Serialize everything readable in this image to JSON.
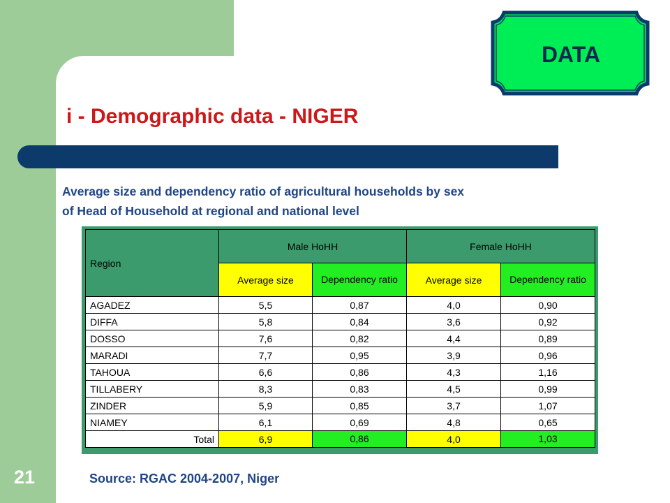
{
  "badge": "DATA",
  "title": "i - Demographic data - NIGER",
  "subtitle": [
    "Average size and dependency ratio of agricultural households by sex",
    "of Head of Household at regional and national level"
  ],
  "table": {
    "region_header": "Region",
    "groups": [
      "Male HoHH",
      "Female HoHH"
    ],
    "columns": [
      "Average size",
      "Dependency ratio",
      "Average size",
      "Dependency ratio"
    ],
    "rows": [
      [
        "AGADEZ",
        "5,5",
        "0,87",
        "4,0",
        "0,90"
      ],
      [
        "DIFFA",
        "5,8",
        "0,84",
        "3,6",
        "0,92"
      ],
      [
        "DOSSO",
        "7,6",
        "0,82",
        "4,4",
        "0,89"
      ],
      [
        "MARADI",
        "7,7",
        "0,95",
        "3,9",
        "0,96"
      ],
      [
        "TAHOUA",
        "6,6",
        "0,86",
        "4,3",
        "1,16"
      ],
      [
        "TILLABERY",
        "8,3",
        "0,83",
        "4,5",
        "0,99"
      ],
      [
        "ZINDER",
        "5,9",
        "0,85",
        "3,7",
        "1,07"
      ],
      [
        "NIAMEY",
        "6,1",
        "0,69",
        "4,8",
        "0,65"
      ]
    ],
    "total": [
      "Total",
      "6,9",
      "0,86",
      "4,0",
      "1,03"
    ]
  },
  "source": "Source: RGAC 2004-2007, Niger",
  "page_number": "21"
}
